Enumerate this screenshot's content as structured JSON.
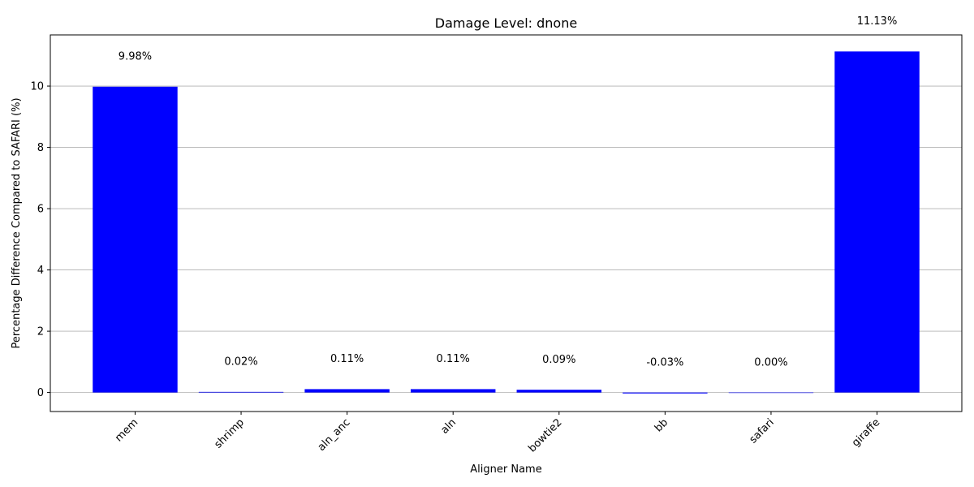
{
  "chart_data": {
    "type": "bar",
    "title": "Damage Level: dnone",
    "xlabel": "Aligner Name",
    "ylabel": "Percentage Difference Compared to SAFARI (%)",
    "categories": [
      "mem",
      "shrimp",
      "aln_anc",
      "aln",
      "bowtie2",
      "bb",
      "safari",
      "giraffe"
    ],
    "values": [
      9.98,
      0.02,
      0.11,
      0.11,
      0.09,
      -0.03,
      0.0,
      11.13
    ],
    "value_labels": [
      "9.98%",
      "0.02%",
      "0.11%",
      "0.11%",
      "0.09%",
      "-0.03%",
      "0.00%",
      "11.13%"
    ],
    "ylim": [
      -0.62,
      11.67
    ],
    "yticks": [
      0,
      2,
      4,
      6,
      8,
      10
    ],
    "ytick_labels": [
      "0",
      "2",
      "4",
      "6",
      "8",
      "10"
    ],
    "grid": "y",
    "bar_color": "#0000ff"
  }
}
